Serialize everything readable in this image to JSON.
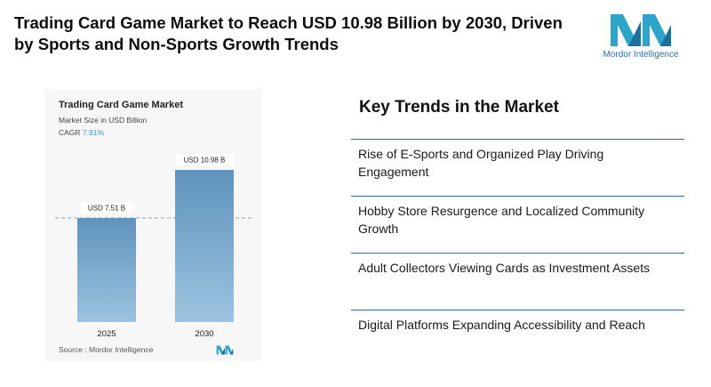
{
  "headline": "Trading Card Game Market to Reach USD 10.98 Billion by 2030, Driven by Sports and Non-Sports Growth Trends",
  "brand": {
    "name": "Mordor Intelligence",
    "colors": [
      "#2fa4c9",
      "#1e6e9e"
    ]
  },
  "chart_card": {
    "title": "Trading Card Game Market",
    "subtitle": "Market Size in USD Billion",
    "cagr_label": "CAGR",
    "cagr_value": "7.91%",
    "source": "Source : Mordor Intelligence"
  },
  "chart_data": {
    "type": "bar",
    "title": "Trading Card Game Market",
    "categories": [
      "2025",
      "2030"
    ],
    "values": [
      7.51,
      10.98
    ],
    "value_labels": [
      "USD 7.51 B",
      "USD 10.98 B"
    ],
    "ylabel": "Market Size in USD Billion",
    "ylim": [
      0,
      12
    ],
    "grid": false,
    "bar_color_top": "#5f93bd",
    "bar_color_bottom": "#9cc3df"
  },
  "trends": {
    "title": "Key Trends in the Market",
    "items": [
      "Rise of E-Sports and Organized Play Driving Engagement",
      "Hobby Store Resurgence and Localized Community Growth",
      "Adult Collectors Viewing Cards as Investment Assets",
      "Digital Platforms Expanding Accessibility and Reach"
    ],
    "divider_color": "#2f6f9a"
  }
}
